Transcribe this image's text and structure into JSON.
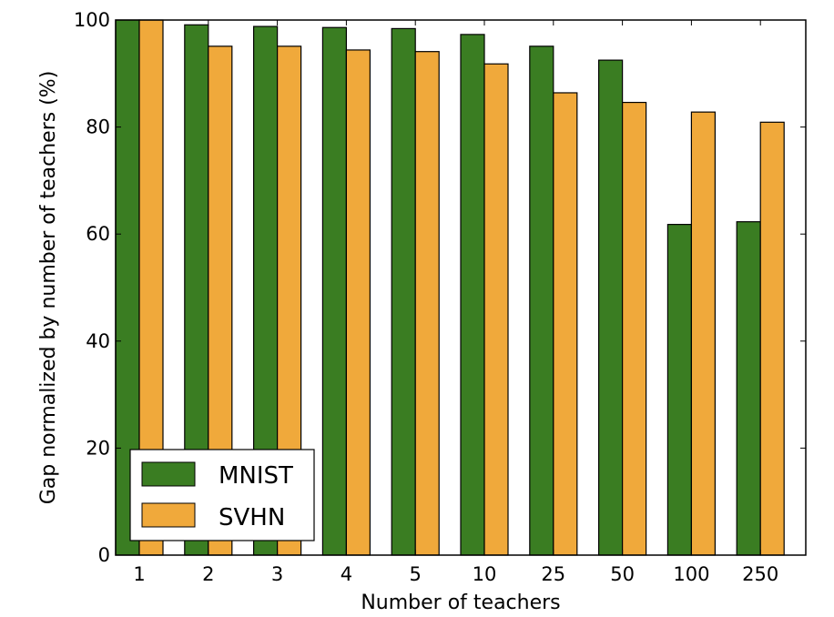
{
  "chart_data": {
    "type": "bar",
    "categories": [
      "1",
      "2",
      "3",
      "4",
      "5",
      "10",
      "25",
      "50",
      "100",
      "250"
    ],
    "series": [
      {
        "name": "MNIST",
        "color": "#3a7d22",
        "values": [
          100,
          99.1,
          98.8,
          98.6,
          98.4,
          97.3,
          95.1,
          92.5,
          61.8,
          62.3
        ]
      },
      {
        "name": "SVHN",
        "color": "#f0a93b",
        "values": [
          100,
          95.1,
          95.1,
          94.4,
          94.1,
          91.8,
          86.4,
          84.6,
          82.8,
          80.9
        ]
      }
    ],
    "xlabel": "Number of teachers",
    "ylabel": "Gap normalized by number of teachers (%)",
    "ylim": [
      0,
      100
    ],
    "yticks": [
      "0",
      "20",
      "40",
      "60",
      "80",
      "100"
    ],
    "legend_position": "lower-left",
    "grid": false
  }
}
